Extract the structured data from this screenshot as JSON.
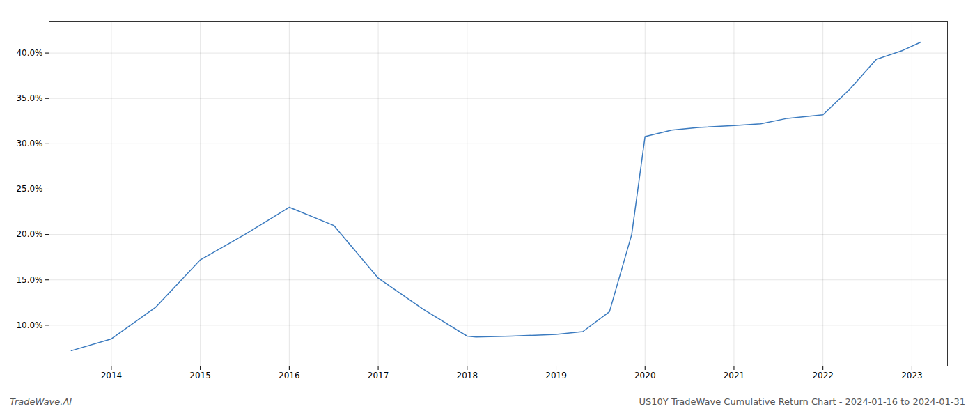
{
  "chart_data": {
    "type": "line",
    "x": [
      2013.55,
      2014.0,
      2014.5,
      2015.0,
      2015.5,
      2016.0,
      2016.5,
      2017.0,
      2017.5,
      2018.0,
      2018.1,
      2018.5,
      2019.0,
      2019.3,
      2019.6,
      2019.85,
      2020.0,
      2020.3,
      2020.6,
      2021.0,
      2021.3,
      2021.6,
      2022.0,
      2022.3,
      2022.6,
      2022.9,
      2023.1
    ],
    "values": [
      0.072,
      0.085,
      0.12,
      0.172,
      0.2,
      0.23,
      0.21,
      0.152,
      0.118,
      0.088,
      0.087,
      0.088,
      0.09,
      0.093,
      0.115,
      0.2,
      0.308,
      0.315,
      0.318,
      0.32,
      0.322,
      0.328,
      0.332,
      0.36,
      0.393,
      0.403,
      0.412
    ],
    "color": "#3a7abf",
    "xlim": [
      2013.3,
      2023.4
    ],
    "ylim": [
      0.055,
      0.435
    ],
    "xticks": [
      2014,
      2015,
      2016,
      2017,
      2018,
      2019,
      2020,
      2021,
      2022,
      2023
    ],
    "yticks": [
      {
        "value": 0.1,
        "label": "10.0%"
      },
      {
        "value": 0.15,
        "label": "15.0%"
      },
      {
        "value": 0.2,
        "label": "20.0%"
      },
      {
        "value": 0.25,
        "label": "25.0%"
      },
      {
        "value": 0.3,
        "label": "30.0%"
      },
      {
        "value": 0.35,
        "label": "35.0%"
      },
      {
        "value": 0.4,
        "label": "40.0%"
      }
    ],
    "grid": true,
    "annotations": [
      "TradeWave.AI",
      "US10Y TradeWave Cumulative Return Chart - 2024-01-16 to 2024-01-31"
    ]
  }
}
